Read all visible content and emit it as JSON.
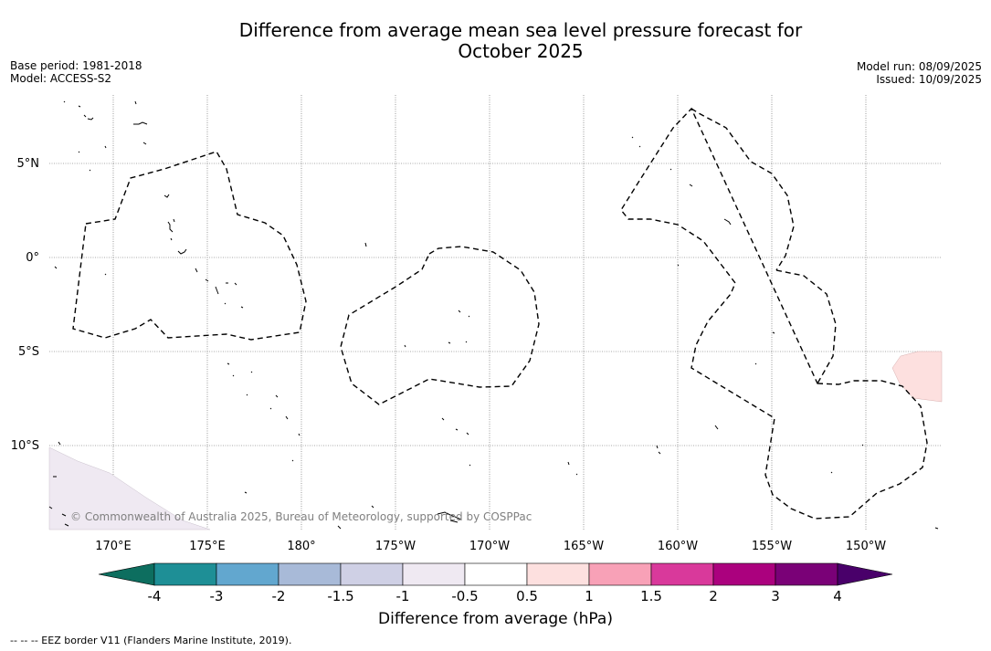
{
  "title": {
    "line1": "Difference from average mean sea level pressure forecast for",
    "line2": "October 2025"
  },
  "meta_left": {
    "base_period": "Base period: 1981-2018",
    "model": "Model: ACCESS-S2"
  },
  "meta_right": {
    "model_run": "Model run: 08/09/2025",
    "issued": "Issued: 10/09/2025"
  },
  "map": {
    "lat_labels": [
      "5°N",
      "0°",
      "5°S",
      "10°S"
    ],
    "lon_labels": [
      "170°E",
      "175°E",
      "180°",
      "175°W",
      "170°W",
      "165°W",
      "160°W",
      "155°W",
      "150°W"
    ],
    "copyright": "© Commonwealth of Australia 2025, Bureau of Meteorology, supported by COSPPac"
  },
  "colorbar": {
    "title": "Difference from average (hPa)",
    "tick_labels": [
      "-4",
      "-3",
      "-2",
      "-1.5",
      "-1",
      "-0.5",
      "0.5",
      "1",
      "1.5",
      "2",
      "3",
      "4"
    ],
    "colors": [
      "#1e8f96",
      "#62a7cf",
      "#a8bad8",
      "#cfd0e5",
      "#efe9f2",
      "#ffffff",
      "#fde0df",
      "#f8a1b7",
      "#d9399b",
      "#ab017e",
      "#7a0177"
    ],
    "extend_low_color": "#0d6e5f",
    "extend_high_color": "#49006a"
  },
  "footer": "--  --  -- EEZ border V11 (Flanders Marine Institute, 2019)."
}
